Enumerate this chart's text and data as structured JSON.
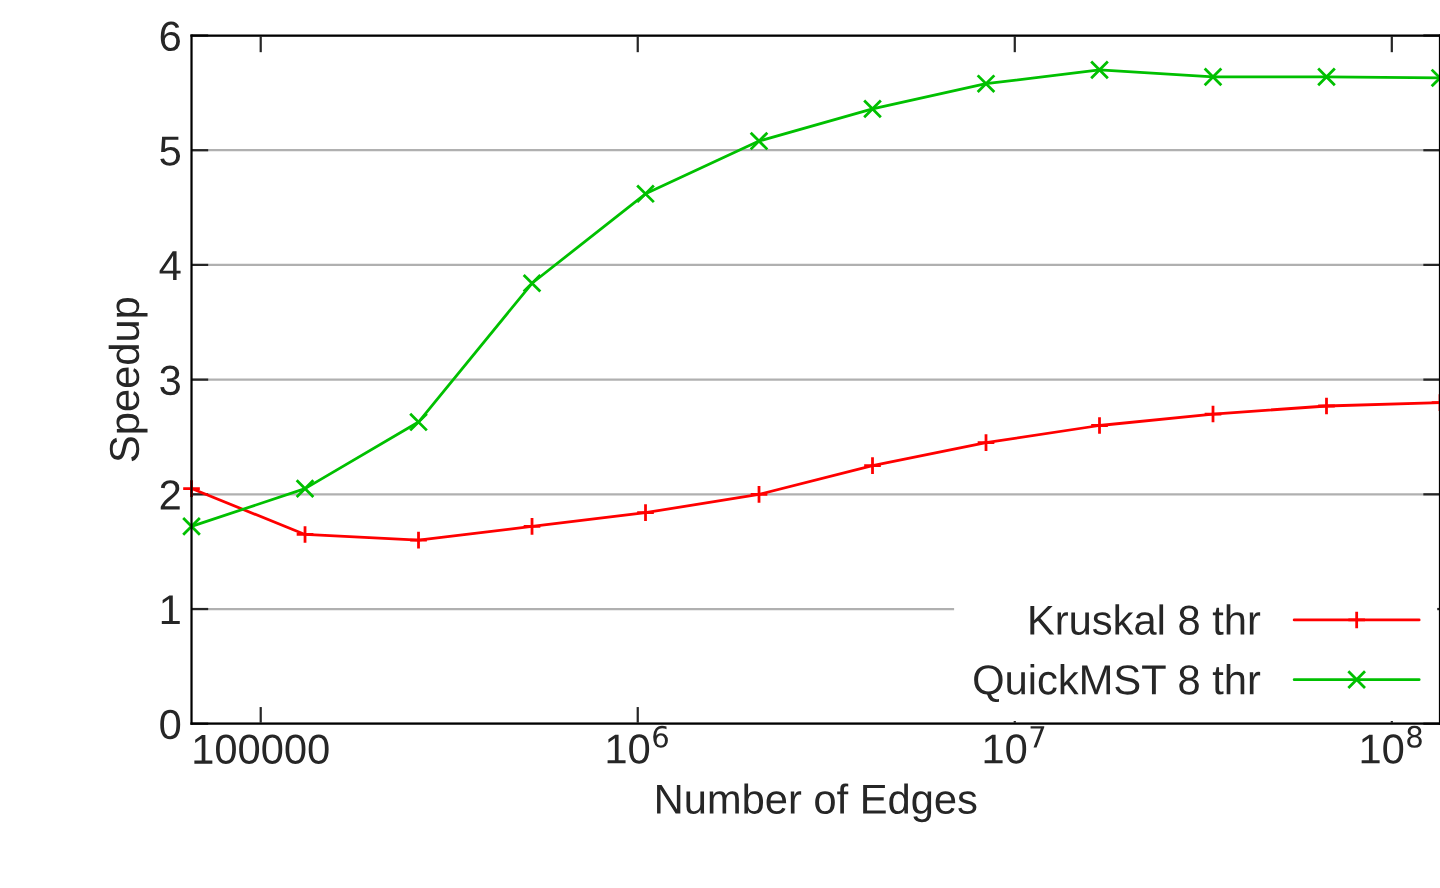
{
  "chart_data": {
    "type": "line",
    "xlabel": "Number of Edges",
    "ylabel": "Speedup",
    "log": "x",
    "x": [
      65536,
      131072,
      262144,
      524288,
      1048576,
      2097152,
      4194304,
      8388608,
      16777216,
      33554432,
      67108864,
      134217728
    ],
    "series": [
      {
        "name": "Kruskal 8 thr",
        "color": "#ff0000",
        "marker": "plus",
        "values": [
          2.05,
          1.65,
          1.6,
          1.72,
          1.84,
          2.0,
          2.25,
          2.45,
          2.6,
          2.7,
          2.77,
          2.8
        ]
      },
      {
        "name": "QuickMST 8 thr",
        "color": "#00c000",
        "marker": "cross",
        "values": [
          1.72,
          2.05,
          2.63,
          3.84,
          4.62,
          5.08,
          5.36,
          5.58,
          5.7,
          5.64,
          5.64,
          5.63
        ]
      }
    ],
    "xlim": [
      65536,
      134217728
    ],
    "xticks": [
      100000,
      {
        "value": 1000000,
        "label": "10$^{6}$"
      },
      {
        "value": 10000000,
        "label": "10$^{7}$"
      },
      {
        "value": 100000000,
        "label": "10$^{8}$"
      }
    ],
    "ylim": [
      0,
      6
    ],
    "yticks": [
      0,
      1,
      2,
      3,
      4,
      5,
      6
    ],
    "grid": "y",
    "legend": "bottom right"
  }
}
